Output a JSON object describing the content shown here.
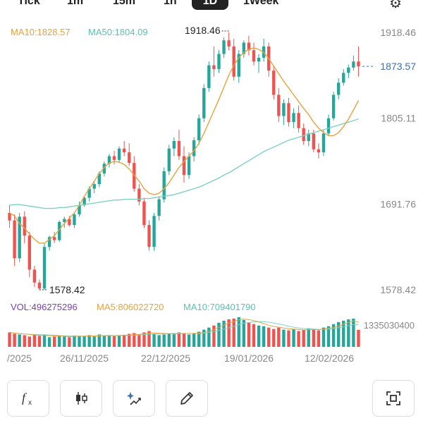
{
  "tabs": [
    {
      "label": "Tick",
      "active": false
    },
    {
      "label": "1m",
      "active": false
    },
    {
      "label": "15m",
      "active": false
    },
    {
      "label": "1h",
      "active": false
    },
    {
      "label": "1D",
      "active": true
    },
    {
      "label": "1Week",
      "active": false
    }
  ],
  "icons": {
    "settings": "gear-icon",
    "indicators": "fx-icon",
    "candle": "candlestick-icon",
    "ai": "sparkle-chart-icon",
    "draw": "pencil-icon",
    "fullscreen": "fullscreen-icon"
  },
  "legend": {
    "ma10": "MA10:1828.57",
    "ma50": "MA50:1804.09"
  },
  "vol_legend": {
    "vol": "VOL:496275296",
    "ma5": "MA5:806022720",
    "ma10": "MA10:709401790"
  },
  "colors": {
    "up": "#26a69a",
    "down": "#ef5350",
    "ma10": "#e6a23c",
    "ma50": "#7fd1c2",
    "vol": "#7a3fb0",
    "last": "#3b6fb6"
  },
  "chart_data": {
    "type": "candlestick",
    "ylim": [
      1578.42,
      1918.46
    ],
    "y_ticks": [
      "1918.46",
      "1805.11",
      "1691.76",
      "1578.42"
    ],
    "x_labels": [
      "/2025",
      "26/11/2025",
      "22/12/2025",
      "19/01/2026",
      "12/02/2026"
    ],
    "high_label": "1918.46",
    "low_label": "1578.42",
    "last_price": "1873.57",
    "volume_max_label": "1335030400",
    "volume_max": 1335030400,
    "candles": [
      [
        1680,
        1690,
        1660,
        1670
      ],
      [
        1670,
        1678,
        1610,
        1620
      ],
      [
        1620,
        1680,
        1615,
        1675
      ],
      [
        1675,
        1682,
        1640,
        1650
      ],
      [
        1650,
        1655,
        1595,
        1605
      ],
      [
        1605,
        1610,
        1582,
        1588
      ],
      [
        1588,
        1592,
        1578.42,
        1580
      ],
      [
        1580,
        1640,
        1578.42,
        1635
      ],
      [
        1635,
        1650,
        1630,
        1648
      ],
      [
        1648,
        1655,
        1640,
        1644
      ],
      [
        1644,
        1670,
        1642,
        1668
      ],
      [
        1668,
        1675,
        1660,
        1672
      ],
      [
        1672,
        1676,
        1662,
        1664
      ],
      [
        1664,
        1680,
        1660,
        1678
      ],
      [
        1678,
        1695,
        1675,
        1690
      ],
      [
        1690,
        1702,
        1688,
        1700
      ],
      [
        1700,
        1715,
        1695,
        1712
      ],
      [
        1712,
        1722,
        1706,
        1718
      ],
      [
        1718,
        1735,
        1714,
        1732
      ],
      [
        1732,
        1748,
        1728,
        1745
      ],
      [
        1745,
        1758,
        1740,
        1755
      ],
      [
        1755,
        1762,
        1744,
        1750
      ],
      [
        1750,
        1768,
        1746,
        1765
      ],
      [
        1765,
        1775,
        1755,
        1760
      ],
      [
        1760,
        1772,
        1742,
        1746
      ],
      [
        1746,
        1755,
        1708,
        1712
      ],
      [
        1712,
        1718,
        1690,
        1695
      ],
      [
        1695,
        1700,
        1660,
        1664
      ],
      [
        1664,
        1670,
        1630,
        1635
      ],
      [
        1635,
        1680,
        1630,
        1676
      ],
      [
        1676,
        1702,
        1670,
        1698
      ],
      [
        1698,
        1740,
        1694,
        1735
      ],
      [
        1735,
        1770,
        1730,
        1765
      ],
      [
        1765,
        1780,
        1755,
        1775
      ],
      [
        1775,
        1790,
        1750,
        1755
      ],
      [
        1755,
        1768,
        1720,
        1730
      ],
      [
        1730,
        1760,
        1725,
        1755
      ],
      [
        1755,
        1780,
        1748,
        1776
      ],
      [
        1776,
        1810,
        1770,
        1805
      ],
      [
        1805,
        1850,
        1800,
        1845
      ],
      [
        1845,
        1880,
        1840,
        1875
      ],
      [
        1875,
        1900,
        1860,
        1870
      ],
      [
        1870,
        1895,
        1865,
        1890
      ],
      [
        1890,
        1912,
        1885,
        1908
      ],
      [
        1908,
        1918.46,
        1895,
        1900
      ],
      [
        1900,
        1910,
        1855,
        1860
      ],
      [
        1860,
        1895,
        1852,
        1890
      ],
      [
        1890,
        1908,
        1885,
        1905
      ],
      [
        1905,
        1914,
        1888,
        1895
      ],
      [
        1895,
        1905,
        1875,
        1880
      ],
      [
        1880,
        1890,
        1865,
        1885
      ],
      [
        1885,
        1910,
        1880,
        1900
      ],
      [
        1900,
        1905,
        1860,
        1868
      ],
      [
        1868,
        1875,
        1830,
        1836
      ],
      [
        1836,
        1845,
        1800,
        1808
      ],
      [
        1808,
        1830,
        1796,
        1825
      ],
      [
        1825,
        1832,
        1794,
        1800
      ],
      [
        1800,
        1818,
        1792,
        1812
      ],
      [
        1812,
        1822,
        1786,
        1792
      ],
      [
        1792,
        1798,
        1770,
        1775
      ],
      [
        1775,
        1790,
        1768,
        1785
      ],
      [
        1785,
        1790,
        1760,
        1764
      ],
      [
        1764,
        1772,
        1752,
        1760
      ],
      [
        1760,
        1790,
        1755,
        1785
      ],
      [
        1785,
        1810,
        1782,
        1805
      ],
      [
        1805,
        1840,
        1802,
        1836
      ],
      [
        1836,
        1858,
        1830,
        1852
      ],
      [
        1852,
        1870,
        1848,
        1865
      ],
      [
        1865,
        1876,
        1858,
        1872
      ],
      [
        1872,
        1888,
        1868,
        1880
      ],
      [
        1880,
        1900,
        1860,
        1873.57
      ]
    ],
    "ma10": [
      1680,
      1676,
      1666,
      1660,
      1652,
      1645,
      1640,
      1640,
      1645,
      1650,
      1658,
      1666,
      1673,
      1680,
      1690,
      1702,
      1712,
      1722,
      1732,
      1740,
      1746,
      1748,
      1747,
      1744,
      1738,
      1730,
      1722,
      1712,
      1706,
      1704,
      1706,
      1712,
      1720,
      1730,
      1740,
      1748,
      1755,
      1762,
      1772,
      1785,
      1800,
      1815,
      1830,
      1846,
      1862,
      1875,
      1885,
      1892,
      1896,
      1898,
      1896,
      1892,
      1884,
      1874,
      1864,
      1854,
      1845,
      1836,
      1827,
      1818,
      1810,
      1800,
      1792,
      1786,
      1782,
      1782,
      1786,
      1794,
      1804,
      1816,
      1828.57
    ],
    "ma50": [
      1690,
      1691,
      1691,
      1690,
      1689,
      1688,
      1687,
      1686,
      1686,
      1686,
      1687,
      1687,
      1688,
      1689,
      1690,
      1691,
      1692,
      1693,
      1694,
      1695,
      1696,
      1697,
      1697,
      1698,
      1698,
      1698,
      1698,
      1699,
      1699,
      1700,
      1701,
      1702,
      1703,
      1704,
      1706,
      1708,
      1710,
      1712,
      1714,
      1717,
      1720,
      1723,
      1726,
      1730,
      1733,
      1737,
      1741,
      1745,
      1749,
      1753,
      1757,
      1761,
      1764,
      1767,
      1770,
      1773,
      1776,
      1778,
      1780,
      1782,
      1784,
      1786,
      1788,
      1790,
      1792,
      1794,
      1796,
      1798,
      1800,
      1802,
      1804.09
    ],
    "volume": [
      420,
      380,
      360,
      340,
      300,
      360,
      320,
      350,
      280,
      300,
      320,
      300,
      280,
      330,
      300,
      320,
      340,
      300,
      360,
      320,
      340,
      310,
      330,
      350,
      380,
      400,
      360,
      420,
      460,
      380,
      340,
      360,
      380,
      400,
      420,
      380,
      360,
      400,
      440,
      500,
      560,
      620,
      700,
      760,
      800,
      820,
      860,
      780,
      700,
      660,
      620,
      600,
      560,
      520,
      560,
      500,
      480,
      520,
      460,
      500,
      540,
      520,
      480,
      560,
      600,
      660,
      720,
      760,
      800,
      820,
      496
    ]
  }
}
